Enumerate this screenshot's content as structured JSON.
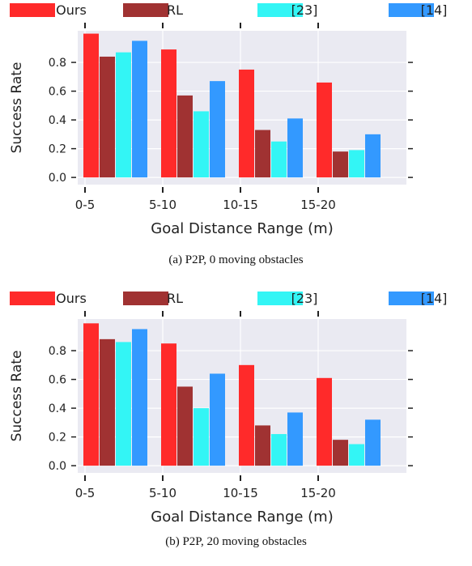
{
  "chart_data": [
    {
      "type": "bar",
      "caption": "(a) P2P, 0 moving obstacles",
      "categories": [
        "0-5",
        "5-10",
        "10-15",
        "15-20"
      ],
      "xlabel": "Goal Distance Range (m)",
      "ylabel": "Success Rate",
      "ylim": [
        -0.05,
        1.02
      ],
      "yticks": [
        "0.0",
        "0.2",
        "0.4",
        "0.6",
        "0.8"
      ],
      "legend_position": "top",
      "grid": true,
      "series": [
        {
          "name": "Ours",
          "color": "#ff2a2a",
          "values": [
            1.0,
            0.89,
            0.75,
            0.66
          ]
        },
        {
          "name": "RL",
          "color": "#a03232",
          "values": [
            0.84,
            0.57,
            0.33,
            0.18
          ]
        },
        {
          "name": "[23]",
          "color": "#33f5f5",
          "values": [
            0.87,
            0.46,
            0.25,
            0.19
          ]
        },
        {
          "name": "[14]",
          "color": "#3399ff",
          "values": [
            0.95,
            0.67,
            0.41,
            0.3
          ]
        }
      ]
    },
    {
      "type": "bar",
      "caption": "(b) P2P, 20 moving obstacles",
      "categories": [
        "0-5",
        "5-10",
        "10-15",
        "15-20"
      ],
      "xlabel": "Goal Distance Range (m)",
      "ylabel": "Success Rate",
      "ylim": [
        -0.05,
        1.02
      ],
      "yticks": [
        "0.0",
        "0.2",
        "0.4",
        "0.6",
        "0.8"
      ],
      "legend_position": "top",
      "grid": true,
      "series": [
        {
          "name": "Ours",
          "color": "#ff2a2a",
          "values": [
            0.99,
            0.85,
            0.7,
            0.61
          ]
        },
        {
          "name": "RL",
          "color": "#a03232",
          "values": [
            0.88,
            0.55,
            0.28,
            0.18
          ]
        },
        {
          "name": "[23]",
          "color": "#33f5f5",
          "values": [
            0.86,
            0.4,
            0.22,
            0.15
          ]
        },
        {
          "name": "[14]",
          "color": "#3399ff",
          "values": [
            0.95,
            0.64,
            0.37,
            0.32
          ]
        }
      ]
    }
  ]
}
